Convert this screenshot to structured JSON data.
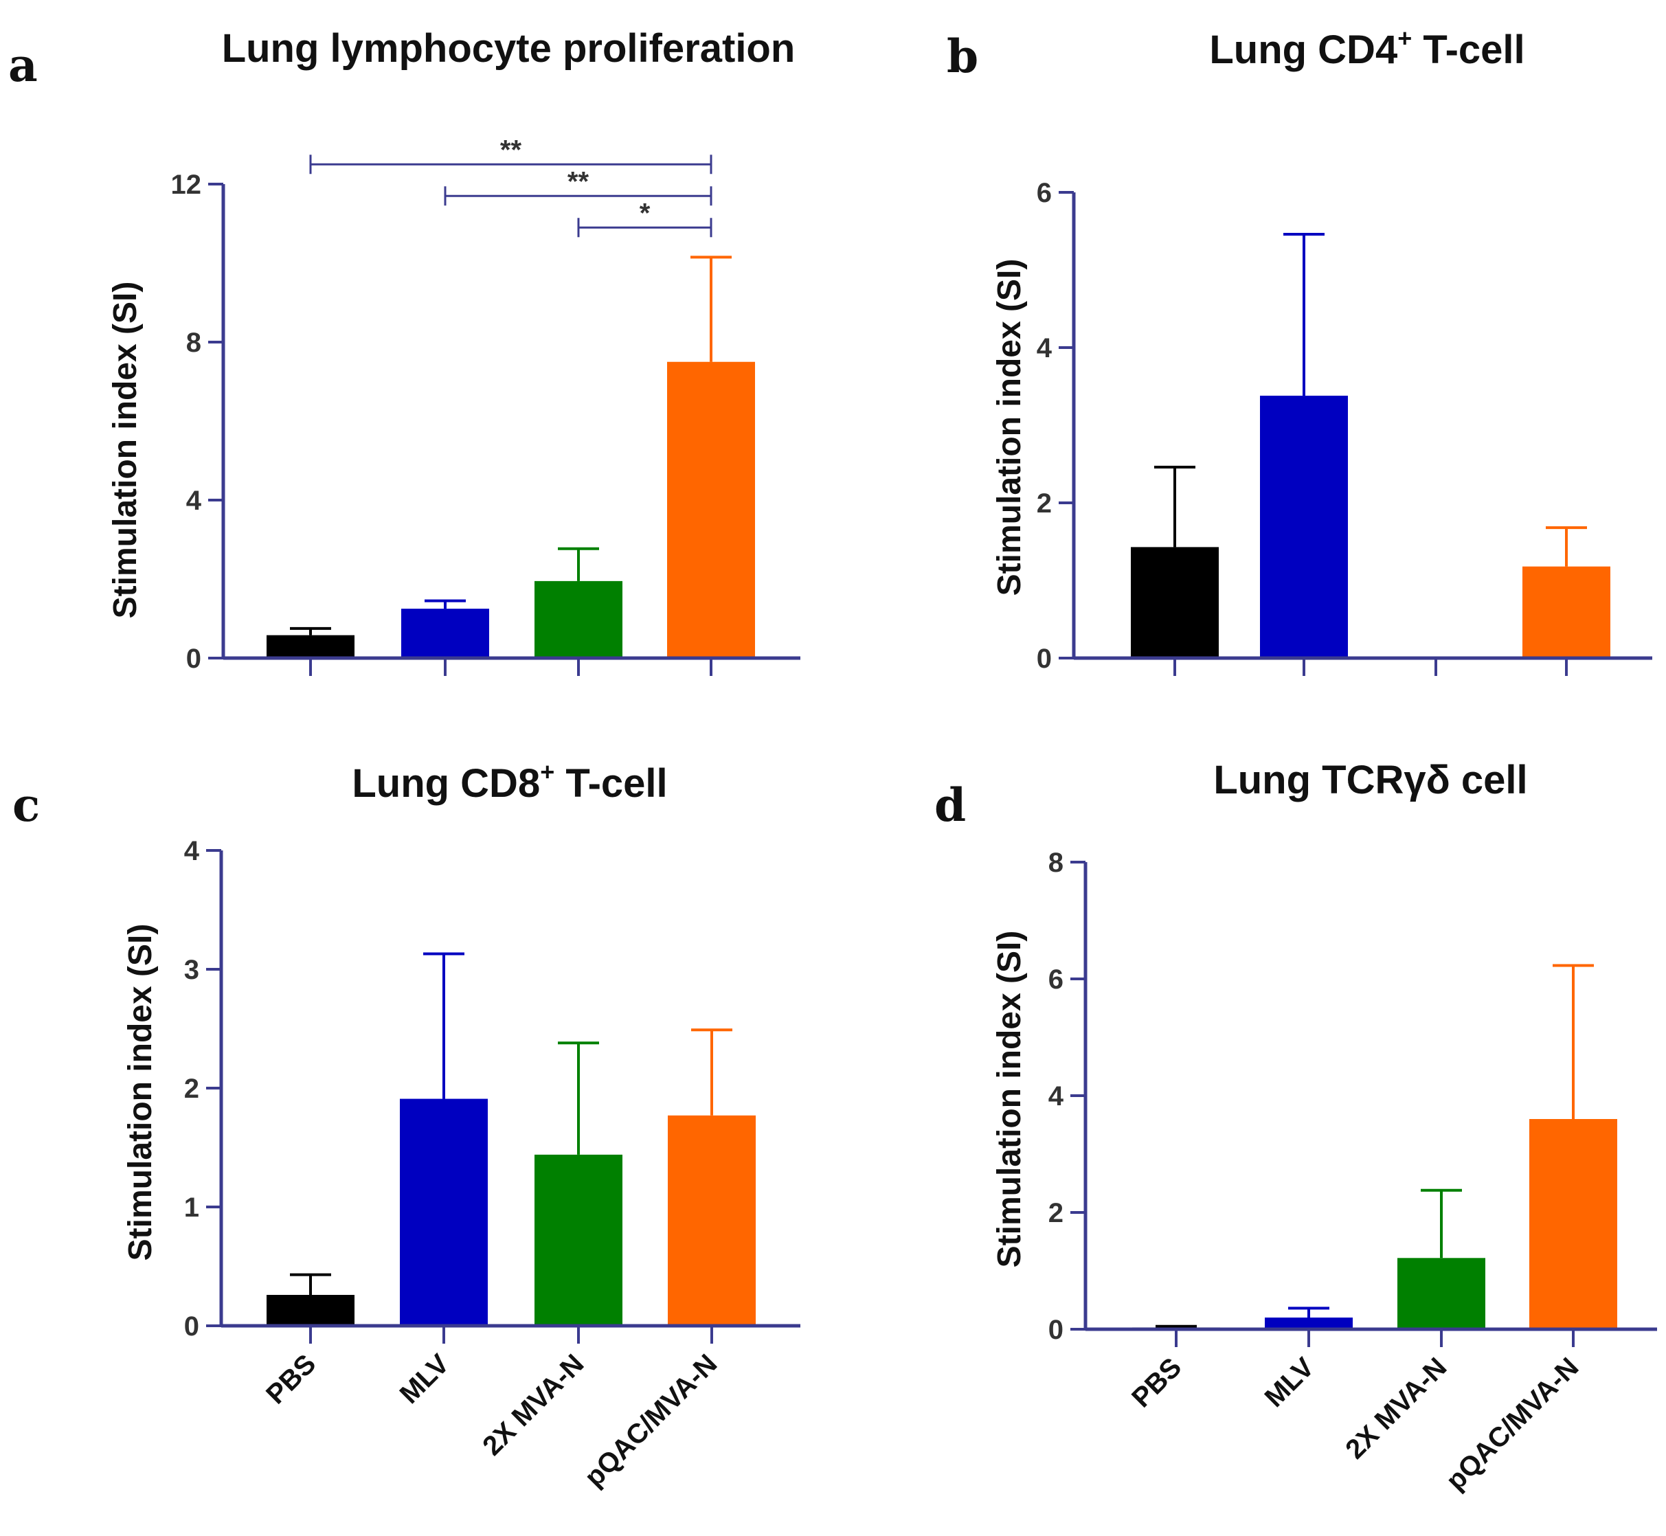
{
  "colors": {
    "PBS": "#000000",
    "MLV": "#0000c0",
    "2X MVA-N": "#008000",
    "pQAC/MVA-N": "#ff6600",
    "axis": "#3b3b8f"
  },
  "chart_data": [
    {
      "type": "bar",
      "panel": "a",
      "title": "Lung lymphocyte proliferation",
      "title_sup": "",
      "title_after": "",
      "ylabel": "Stimulation index (SI)",
      "categories": [
        "PBS",
        "MLV",
        "2X MVA-N",
        "pQAC/MVA-N"
      ],
      "show_category_labels": false,
      "values": [
        0.58,
        1.25,
        1.95,
        7.5
      ],
      "errors": [
        0.17,
        0.2,
        0.82,
        2.65
      ],
      "ylim": [
        0,
        12
      ],
      "yticks": [
        0,
        4,
        8,
        12
      ],
      "significance": [
        {
          "from": 0,
          "to": 3,
          "y": 12.5,
          "label": "**"
        },
        {
          "from": 1,
          "to": 3,
          "y": 11.7,
          "label": "**"
        },
        {
          "from": 2,
          "to": 3,
          "y": 10.9,
          "label": "*"
        }
      ]
    },
    {
      "type": "bar",
      "panel": "b",
      "title": "Lung CD4",
      "title_sup": "+",
      "title_after": " T-cell",
      "ylabel": "Stimulation index (SI)",
      "categories": [
        "PBS",
        "MLV",
        "2X MVA-N",
        "pQAC/MVA-N"
      ],
      "show_category_labels": false,
      "values": [
        1.43,
        3.38,
        0,
        1.18
      ],
      "errors": [
        1.03,
        2.08,
        0,
        0.5
      ],
      "ylim": [
        0,
        6
      ],
      "yticks": [
        0,
        2,
        4,
        6
      ],
      "significance": []
    },
    {
      "type": "bar",
      "panel": "c",
      "title": "Lung CD8",
      "title_sup": "+",
      "title_after": " T-cell",
      "ylabel": "Stimulation index (SI)",
      "categories": [
        "PBS",
        "MLV",
        "2X MVA-N",
        "pQAC/MVA-N"
      ],
      "show_category_labels": true,
      "values": [
        0.26,
        1.91,
        1.44,
        1.77
      ],
      "errors": [
        0.17,
        1.22,
        0.94,
        0.72
      ],
      "ylim": [
        0,
        4
      ],
      "yticks": [
        0,
        1,
        2,
        3,
        4
      ],
      "significance": []
    },
    {
      "type": "bar",
      "panel": "d",
      "title": "Lung TCRγδ cell",
      "title_sup": "",
      "title_after": "",
      "ylabel": "Stimulation index (SI)",
      "categories": [
        "PBS",
        "MLV",
        "2X MVA-N",
        "pQAC/MVA-N"
      ],
      "show_category_labels": true,
      "values": [
        0.03,
        0.2,
        1.22,
        3.6
      ],
      "errors": [
        0.02,
        0.16,
        1.16,
        2.63
      ],
      "ylim": [
        0,
        8
      ],
      "yticks": [
        0,
        2,
        4,
        6,
        8
      ],
      "significance": []
    }
  ]
}
